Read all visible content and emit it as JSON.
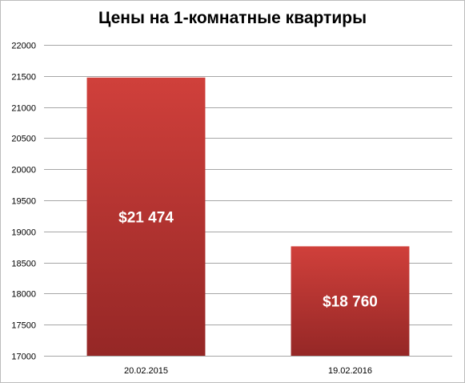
{
  "chart_data": {
    "type": "bar",
    "title": "Цены на 1-комнатные квартиры",
    "xlabel": "",
    "ylabel": "",
    "categories": [
      "20.02.2015",
      "19.02.2016"
    ],
    "values": [
      21474,
      18760
    ],
    "data_labels": [
      "$21 474",
      "$18 760"
    ],
    "ylim": [
      17000,
      22000
    ],
    "y_ticks": [
      17000,
      17500,
      18000,
      18500,
      19000,
      19500,
      20000,
      20500,
      21000,
      21500,
      22000
    ],
    "grid": true,
    "legend": "none",
    "colors": {
      "bar_top": "#d0403b",
      "bar_bottom": "#952726",
      "grid": "#a6a6a6"
    }
  }
}
